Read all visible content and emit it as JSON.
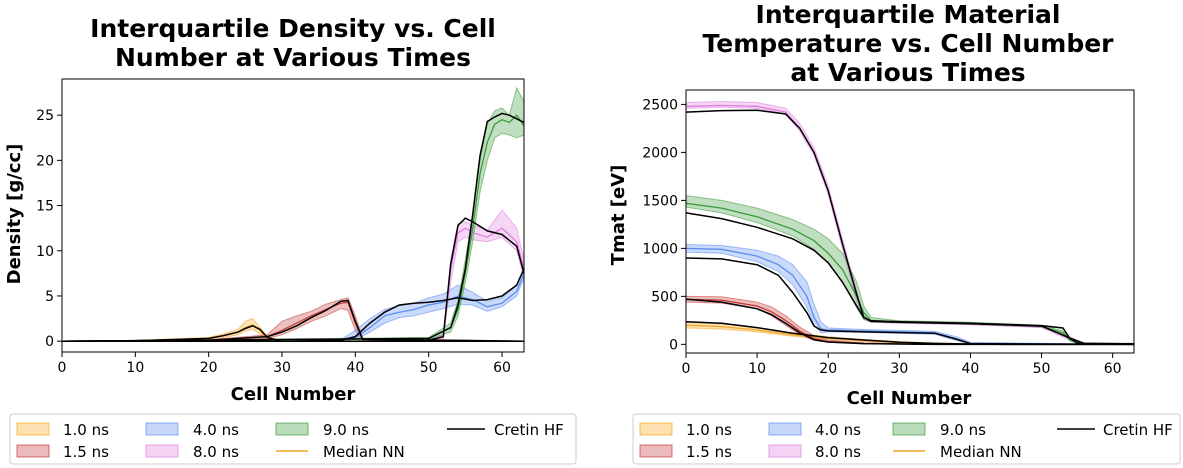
{
  "chart_data": [
    {
      "type": "line",
      "title_lines": [
        "Interquartile Density vs. Cell",
        "Number at Various Times"
      ],
      "xlabel": "Cell Number",
      "ylabel": "Density [g/cc]",
      "xlim": [
        0,
        63
      ],
      "ylim": [
        -1.2,
        29
      ],
      "xticks": [
        0,
        10,
        20,
        30,
        40,
        50,
        60
      ],
      "yticks": [
        0,
        5,
        10,
        15,
        20,
        25
      ],
      "series": [
        {
          "name": "1.0 ns",
          "color": "#f5a623",
          "x": [
            0,
            10,
            20,
            22,
            24,
            25,
            26,
            27,
            28,
            30,
            63
          ],
          "median": [
            0,
            0.05,
            0.3,
            0.6,
            1.0,
            1.5,
            1.8,
            1.2,
            0.3,
            0,
            0
          ],
          "q1": [
            0,
            0.05,
            0.2,
            0.4,
            0.7,
            1.1,
            1.3,
            0.8,
            0.1,
            0,
            0
          ],
          "q3": [
            0,
            0.08,
            0.4,
            0.8,
            1.3,
            2.2,
            2.5,
            1.5,
            0.5,
            0.05,
            0
          ],
          "cretin": [
            0,
            0.05,
            0.3,
            0.6,
            1.0,
            1.4,
            1.7,
            1.3,
            0.4,
            0,
            0
          ]
        },
        {
          "name": "1.5 ns",
          "color": "#c43c39",
          "x": [
            0,
            20,
            28,
            30,
            32,
            34,
            36,
            38,
            39,
            40,
            41,
            63
          ],
          "median": [
            0,
            0.1,
            0.5,
            1.2,
            2.0,
            2.8,
            3.5,
            4.2,
            4.3,
            2.0,
            0.2,
            0
          ],
          "q1": [
            0,
            0.1,
            0.3,
            0.7,
            1.4,
            2.2,
            2.8,
            3.6,
            3.4,
            1.2,
            0.1,
            0
          ],
          "q3": [
            0,
            0.15,
            0.7,
            2.2,
            2.8,
            3.3,
            4.1,
            4.6,
            4.8,
            2.8,
            0.3,
            0
          ],
          "cretin": [
            0,
            0.1,
            0.5,
            1.0,
            1.7,
            2.6,
            3.4,
            4.4,
            4.5,
            2.2,
            0.2,
            0
          ]
        },
        {
          "name": "4.0 ns",
          "color": "#5b8def",
          "x": [
            0,
            30,
            38,
            40,
            42,
            44,
            46,
            48,
            50,
            52,
            54,
            56,
            58,
            60,
            62,
            63
          ],
          "median": [
            0,
            0,
            0.1,
            0.4,
            1.5,
            2.8,
            3.2,
            3.5,
            4.0,
            4.3,
            5.0,
            4.6,
            3.8,
            4.2,
            5.5,
            7.5
          ],
          "q1": [
            0,
            0,
            0.05,
            0.2,
            1.0,
            2.0,
            2.6,
            2.8,
            3.2,
            3.6,
            4.1,
            4.0,
            3.3,
            3.8,
            5.0,
            7.0
          ],
          "q3": [
            0,
            0,
            0.15,
            1.2,
            2.5,
            3.5,
            3.9,
            4.2,
            4.8,
            5.2,
            6.2,
            5.4,
            4.4,
            4.8,
            6.2,
            8.0
          ],
          "cretin": [
            0,
            0,
            0.1,
            0.5,
            2.0,
            3.2,
            4.0,
            4.2,
            4.3,
            4.5,
            4.8,
            4.5,
            4.6,
            5.0,
            6.2,
            8.0
          ]
        },
        {
          "name": "8.0 ns",
          "color": "#e07ee0",
          "x": [
            0,
            40,
            50,
            52,
            53,
            54,
            55,
            56,
            58,
            60,
            62,
            63
          ],
          "median": [
            0,
            0,
            0.1,
            0.5,
            8.0,
            12.0,
            12.5,
            12.0,
            11.5,
            12.5,
            11.0,
            8.0
          ],
          "q1": [
            0,
            0,
            0.05,
            0.3,
            6.5,
            11.0,
            11.5,
            11.2,
            11.0,
            11.5,
            10.0,
            7.0
          ],
          "q3": [
            0,
            0,
            0.15,
            0.7,
            9.0,
            13.0,
            13.2,
            12.8,
            12.3,
            14.5,
            12.5,
            9.0
          ],
          "cretin": [
            0,
            0,
            0.1,
            0.5,
            8.5,
            12.8,
            13.6,
            13.2,
            12.2,
            11.8,
            10.5,
            7.5
          ]
        },
        {
          "name": "9.0 ns",
          "color": "#3c9a3c",
          "x": [
            0,
            50,
            53,
            54,
            55,
            56,
            57,
            58,
            59,
            60,
            61,
            62,
            63
          ],
          "median": [
            0,
            0.3,
            1.5,
            3.5,
            7.5,
            12.5,
            18.5,
            22.0,
            24.0,
            24.5,
            24.2,
            25.0,
            23.8
          ],
          "q1": [
            0,
            0.2,
            1.0,
            2.8,
            6.5,
            11.0,
            16.5,
            20.0,
            22.5,
            23.0,
            22.8,
            22.5,
            22.8
          ],
          "q3": [
            0,
            0.4,
            2.0,
            4.5,
            9.0,
            14.0,
            20.0,
            24.0,
            25.5,
            25.8,
            25.0,
            28.0,
            26.5
          ],
          "cretin": [
            0,
            0.3,
            1.5,
            4.0,
            8.0,
            14.0,
            20.5,
            24.3,
            24.8,
            25.2,
            25.0,
            24.6,
            24.2
          ]
        }
      ]
    },
    {
      "type": "line",
      "title_lines": [
        "Interquartile Material",
        "Temperature vs. Cell Number",
        "at Various Times"
      ],
      "xlabel": "Cell Number",
      "ylabel": "Tmat [eV]",
      "xlim": [
        0,
        63
      ],
      "ylim": [
        -90,
        2650
      ],
      "xticks": [
        0,
        10,
        20,
        30,
        40,
        50,
        60
      ],
      "yticks": [
        0,
        500,
        1000,
        1500,
        2000,
        2500
      ],
      "series": [
        {
          "name": "1.0 ns",
          "color": "#f5a623",
          "x": [
            0,
            5,
            10,
            15,
            20,
            25,
            30,
            35,
            40,
            45,
            63
          ],
          "median": [
            200,
            185,
            150,
            100,
            65,
            40,
            20,
            8,
            3,
            0,
            0
          ],
          "q1": [
            170,
            160,
            130,
            85,
            55,
            30,
            12,
            4,
            0,
            0,
            0
          ],
          "q3": [
            230,
            215,
            175,
            120,
            80,
            52,
            30,
            14,
            6,
            0,
            0
          ],
          "cretin": [
            235,
            220,
            175,
            115,
            70,
            45,
            22,
            10,
            4,
            0,
            0
          ]
        },
        {
          "name": "1.5 ns",
          "color": "#c43c39",
          "x": [
            0,
            5,
            10,
            12,
            14,
            16,
            18,
            20,
            25,
            35,
            63
          ],
          "median": [
            470,
            460,
            400,
            340,
            250,
            140,
            60,
            30,
            10,
            0,
            0
          ],
          "q1": [
            440,
            430,
            370,
            300,
            200,
            100,
            40,
            20,
            5,
            0,
            0
          ],
          "q3": [
            500,
            495,
            440,
            390,
            300,
            180,
            90,
            45,
            15,
            0,
            0
          ],
          "cretin": [
            470,
            440,
            370,
            310,
            220,
            120,
            50,
            25,
            8,
            0,
            0
          ]
        },
        {
          "name": "4.0 ns",
          "color": "#5b8def",
          "x": [
            0,
            5,
            10,
            13,
            15,
            17,
            18,
            19,
            20,
            25,
            35,
            38,
            40,
            63
          ],
          "median": [
            1000,
            990,
            920,
            830,
            720,
            500,
            280,
            160,
            150,
            140,
            120,
            60,
            10,
            0
          ],
          "q1": [
            960,
            950,
            860,
            760,
            620,
            390,
            200,
            120,
            130,
            125,
            105,
            40,
            5,
            0
          ],
          "q3": [
            1040,
            1030,
            980,
            920,
            830,
            650,
            420,
            230,
            170,
            155,
            135,
            80,
            20,
            0
          ],
          "cretin": [
            900,
            890,
            830,
            720,
            540,
            330,
            190,
            150,
            140,
            130,
            115,
            55,
            8,
            0
          ]
        },
        {
          "name": "8.0 ns",
          "color": "#e07ee0",
          "x": [
            0,
            5,
            10,
            14,
            16,
            18,
            20,
            22,
            24,
            25,
            26,
            30,
            40,
            50,
            54,
            56,
            63
          ],
          "median": [
            2480,
            2490,
            2480,
            2420,
            2250,
            2000,
            1600,
            1050,
            500,
            280,
            240,
            230,
            215,
            185,
            60,
            10,
            5
          ],
          "q1": [
            2460,
            2470,
            2460,
            2400,
            2220,
            1970,
            1560,
            1000,
            450,
            260,
            230,
            220,
            205,
            175,
            45,
            5,
            0
          ],
          "q3": [
            2520,
            2530,
            2520,
            2460,
            2300,
            2050,
            1650,
            1100,
            560,
            300,
            250,
            240,
            225,
            195,
            75,
            15,
            10
          ],
          "cretin": [
            2420,
            2435,
            2440,
            2400,
            2250,
            2000,
            1600,
            1050,
            520,
            280,
            240,
            230,
            215,
            190,
            65,
            10,
            5
          ]
        },
        {
          "name": "9.0 ns",
          "color": "#3c9a3c",
          "x": [
            0,
            5,
            10,
            15,
            18,
            20,
            22,
            24,
            25,
            26,
            30,
            40,
            50,
            53,
            54,
            55,
            56,
            63
          ],
          "median": [
            1470,
            1420,
            1330,
            1200,
            1080,
            950,
            780,
            500,
            330,
            250,
            235,
            220,
            190,
            120,
            50,
            20,
            10,
            5
          ],
          "q1": [
            1430,
            1370,
            1270,
            1130,
            990,
            850,
            650,
            380,
            260,
            230,
            225,
            210,
            180,
            100,
            35,
            12,
            5,
            0
          ],
          "q3": [
            1550,
            1500,
            1420,
            1300,
            1200,
            1100,
            950,
            650,
            400,
            280,
            245,
            230,
            200,
            140,
            65,
            28,
            15,
            10
          ],
          "cretin": [
            1370,
            1310,
            1220,
            1100,
            980,
            850,
            650,
            400,
            280,
            245,
            235,
            220,
            195,
            170,
            60,
            15,
            8,
            5
          ]
        }
      ]
    }
  ],
  "legend_labels": {
    "l1": "1.0 ns",
    "l2": "1.5 ns",
    "l3": "4.0 ns",
    "l4": "8.0 ns",
    "l5": "9.0 ns",
    "l6": "Median NN",
    "l7": "Cretin HF"
  },
  "legend_colors": {
    "median_nn": "#f5a623",
    "cretin_hf": "#000000"
  }
}
